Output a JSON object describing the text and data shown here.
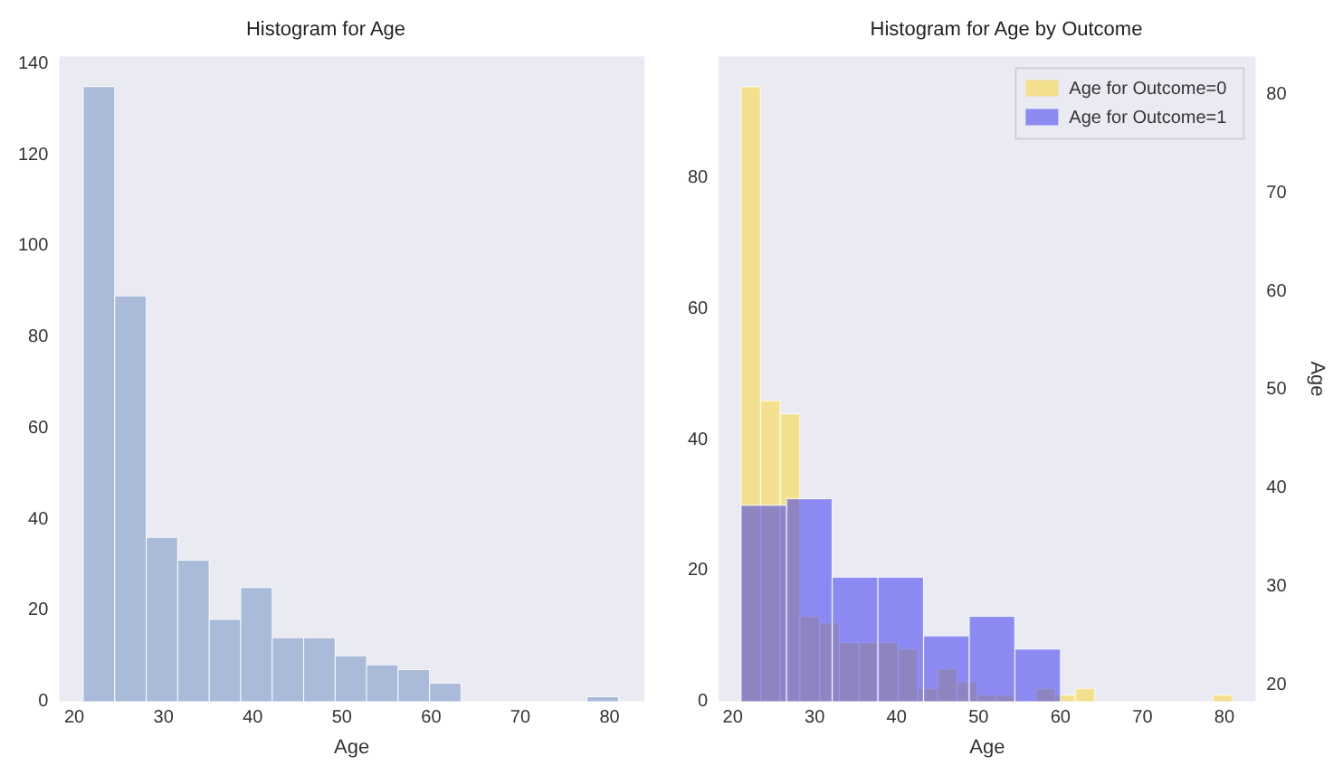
{
  "chart_data": [
    {
      "type": "histogram",
      "title": "Histogram for Age",
      "xlabel": "Age",
      "bins": [
        21,
        24.53,
        28.06,
        31.59,
        35.12,
        38.65,
        42.18,
        45.71,
        49.24,
        52.76,
        56.29,
        59.82,
        63.35,
        66.88,
        70.41,
        73.94,
        77.47,
        81
      ],
      "values": [
        135,
        89,
        36,
        31,
        18,
        25,
        14,
        14,
        10,
        8,
        7,
        4,
        0,
        0,
        0,
        0,
        1
      ],
      "color": "#aabad9",
      "xlim": [
        18.3,
        83.9
      ],
      "xticks": [
        20,
        30,
        40,
        50,
        60,
        70,
        80
      ],
      "ylim": [
        0,
        141.6
      ],
      "yticks": [
        0,
        20,
        40,
        60,
        80,
        100,
        120,
        140
      ],
      "grid": false
    },
    {
      "type": "histogram",
      "title": "Histogram for Age by Outcome",
      "xlabel": "Age",
      "y2label": "Age",
      "bins": [
        21,
        23.4,
        25.8,
        28.2,
        30.6,
        33,
        35.4,
        37.8,
        40.2,
        42.6,
        45,
        47.4,
        49.8,
        52.2,
        54.6,
        57,
        59.4,
        61.8,
        64.2,
        66.6,
        69,
        71.4,
        73.8,
        76.2,
        78.6,
        81
      ],
      "series": [
        {
          "name": "Age for Outcome=0",
          "color": "#f2e08e",
          "values": [
            94,
            46,
            44,
            13,
            12,
            9,
            9,
            9,
            8,
            2,
            5,
            3,
            1,
            1,
            0,
            2,
            1,
            2,
            0,
            0,
            0,
            0,
            0,
            0,
            1
          ]
        }
      ],
      "xlim": [
        18.3,
        83.8
      ],
      "xticks": [
        20,
        30,
        40,
        50,
        60,
        70,
        80
      ],
      "ylim": [
        0,
        98.6
      ],
      "yticks": [
        0,
        20,
        40,
        60,
        80
      ],
      "y2lim": [
        18.3,
        83.9
      ],
      "y2ticks": [
        20,
        30,
        40,
        50,
        60,
        70,
        80
      ],
      "grid": false,
      "legend": "top right"
    },
    {
      "type": "histogram",
      "bins": [
        21,
        26.57,
        32.14,
        37.71,
        43.29,
        48.86,
        54.43,
        60
      ],
      "series": [
        {
          "name": "Age for Outcome=1",
          "color": "#8a8af2",
          "values": [
            30,
            31,
            19,
            19,
            10,
            13,
            8
          ]
        }
      ],
      "xlim": [
        18.3,
        83.8
      ],
      "ylim": [
        0,
        98.6
      ],
      "tick_labels": false,
      "grid": false,
      "legend": "top right"
    }
  ]
}
